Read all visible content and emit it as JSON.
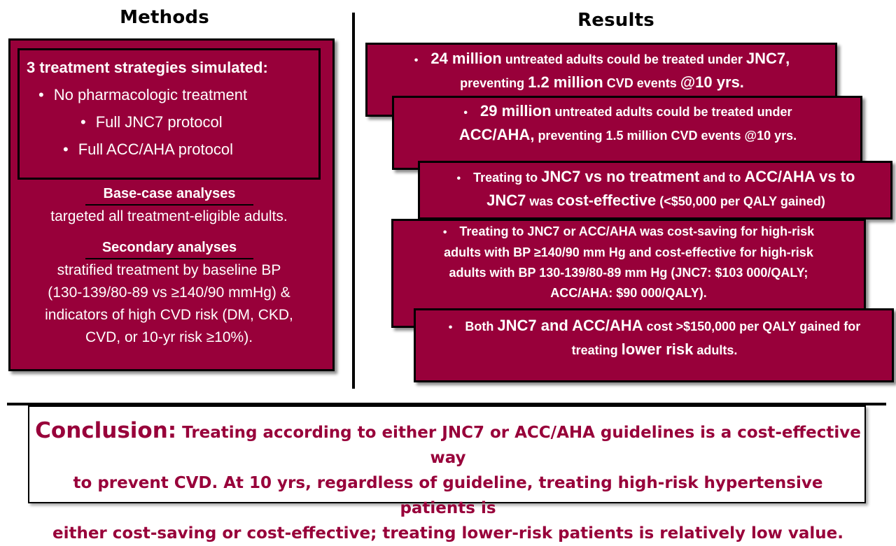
{
  "methods": {
    "heading": "Methods",
    "strategies_title": "3 treatment strategies simulated:",
    "strategies": [
      "No pharmacologic treatment",
      "Full JNC7 protocol",
      "Full ACC/AHA protocol"
    ],
    "base_case_title": "Base-case analyses",
    "base_case_text": "targeted all treatment-eligible adults.",
    "secondary_title": "Secondary analyses",
    "secondary_lines": [
      "stratified treatment by baseline BP",
      "(130-139/80-89 vs ≥140/90 mmHg) &",
      "indicators of high CVD risk (DM, CKD,",
      "CVD, or 10-yr risk ≥10%)."
    ]
  },
  "results": {
    "heading": "Results",
    "r1": {
      "a": "24 million",
      "b": " untreated adults could be treated under ",
      "c": "JNC7,",
      "d": "preventing ",
      "e": "1.2 million",
      "f": " CVD events ",
      "g": "@10 yrs."
    },
    "r2": {
      "a": "29 million",
      "b": " untreated adults could be treated under",
      "c": "ACC/AHA,",
      "d": " preventing 1.5  million CVD events @10 yrs."
    },
    "r3": {
      "a": "Treating to ",
      "b": "JNC7 vs no treatment",
      "c": " and to ",
      "d": "ACC/AHA vs to",
      "e": "JNC7",
      "f": " was ",
      "g": "cost-effective",
      "h": " (<$50,000 per QALY gained)"
    },
    "r4": {
      "lines": [
        "Treating to JNC7 or ACC/AHA was cost-saving for high-risk",
        "adults with BP ≥140/90 mm Hg and cost-effective for high-risk",
        "adults with BP 130-139/80-89  mm Hg (JNC7: $103 000/QALY;",
        "ACC/AHA: $90 000/QALY)."
      ]
    },
    "r5": {
      "a": "Both ",
      "b": "JNC7 and ACC/AHA",
      "c": " cost >$150,000 per QALY gained for",
      "d": "treating ",
      "e": "lower risk",
      "f": " adults."
    }
  },
  "conclusion": {
    "label": "Conclusion:",
    "lines": [
      " Treating according to either JNC7 or ACC/AHA guidelines is a cost-effective way",
      "to prevent CVD. At 10 yrs, regardless of guideline, treating high-risk hypertensive patients is",
      "either cost-saving or cost-effective; treating lower-risk patients is relatively low value."
    ]
  },
  "colors": {
    "maroon": "#98003a",
    "text_on_maroon": "#ffffff"
  }
}
